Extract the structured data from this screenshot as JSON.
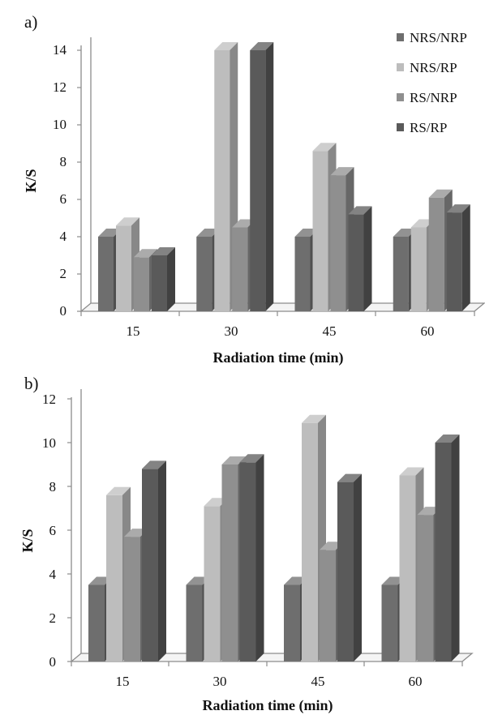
{
  "chart_data": [
    {
      "type": "bar",
      "panel_label": "a)",
      "categories": [
        "15",
        "30",
        "45",
        "60"
      ],
      "series": [
        {
          "name": "NRS/NRP",
          "values": [
            4.0,
            4.0,
            4.0,
            4.0
          ]
        },
        {
          "name": "NRS/RP",
          "values": [
            4.6,
            14.0,
            8.6,
            4.5
          ]
        },
        {
          "name": "RS/NRP",
          "values": [
            2.9,
            4.5,
            7.3,
            6.1
          ]
        },
        {
          "name": "RS/RP",
          "values": [
            3.0,
            14.0,
            5.2,
            5.3
          ]
        }
      ],
      "xlabel": "Radiation time (min)",
      "ylabel": "K/S",
      "ylim": [
        0,
        14
      ],
      "yticks": [
        "0",
        "2",
        "4",
        "6",
        "8",
        "10",
        "12",
        "14"
      ],
      "legend": "top-right",
      "grid": false,
      "style": "3d-clustered-column"
    },
    {
      "type": "bar",
      "panel_label": "b)",
      "categories": [
        "15",
        "30",
        "45",
        "60"
      ],
      "series": [
        {
          "name": "NRS/NRP",
          "values": [
            3.5,
            3.5,
            3.5,
            3.5
          ]
        },
        {
          "name": "NRS/RP",
          "values": [
            7.6,
            7.1,
            10.9,
            8.5
          ]
        },
        {
          "name": "RS/NRP",
          "values": [
            5.7,
            9.0,
            5.1,
            6.7
          ]
        },
        {
          "name": "RS/RP",
          "values": [
            8.8,
            9.1,
            8.2,
            10.0
          ]
        }
      ],
      "xlabel": "Radiation time (min)",
      "ylabel": "K/S",
      "ylim": [
        0,
        12
      ],
      "yticks": [
        "0",
        "2",
        "4",
        "6",
        "8",
        "10",
        "12"
      ],
      "legend": "none",
      "grid": false,
      "style": "3d-clustered-column"
    }
  ],
  "series_colors": [
    "#6e6e6e",
    "#bdbdbd",
    "#8f8f8f",
    "#5a5a5a"
  ]
}
